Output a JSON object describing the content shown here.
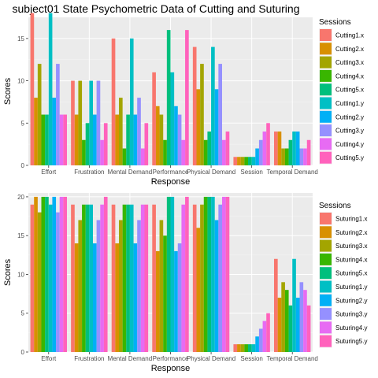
{
  "chart_data": [
    {
      "type": "bar",
      "title": "subject01 State Psychometric Data of Cutting and Suturing",
      "xlabel": "Response",
      "ylabel": "Scores",
      "ylim": [
        0,
        17.5
      ],
      "yticks": [
        0,
        5,
        10,
        15
      ],
      "categories": [
        "Effort",
        "Frustration",
        "Mental Demand",
        "Performance",
        "Physical Demand",
        "Session",
        "Temporal Demand"
      ],
      "legend_title": "Sessions",
      "legend_position": "right",
      "grid": true,
      "series": [
        {
          "name": "Cutting1.x",
          "color": "#F8766D",
          "values": [
            18,
            10,
            15,
            11,
            14,
            1,
            4
          ]
        },
        {
          "name": "Cutting2.x",
          "color": "#D89000",
          "values": [
            8,
            6,
            6,
            7,
            9,
            1,
            4
          ]
        },
        {
          "name": "Cutting3.x",
          "color": "#A3A500",
          "values": [
            12,
            10,
            8,
            6,
            12,
            1,
            2
          ]
        },
        {
          "name": "Cutting4.x",
          "color": "#39B600",
          "values": [
            6,
            3,
            2,
            3,
            3,
            1,
            2
          ]
        },
        {
          "name": "Cutting5.x",
          "color": "#00BF7D",
          "values": [
            6,
            5,
            6,
            16,
            4,
            1,
            3
          ]
        },
        {
          "name": "Cutting1.y",
          "color": "#00BFC4",
          "values": [
            18,
            10,
            15,
            11,
            14,
            1,
            4
          ]
        },
        {
          "name": "Cutting2.y",
          "color": "#00B0F6",
          "values": [
            8,
            6,
            6,
            7,
            9,
            2,
            4
          ]
        },
        {
          "name": "Cutting3.y",
          "color": "#9590FF",
          "values": [
            12,
            10,
            8,
            6,
            12,
            3,
            2
          ]
        },
        {
          "name": "Cutting4.y",
          "color": "#E76BF3",
          "values": [
            6,
            3,
            2,
            3,
            3,
            4,
            2
          ]
        },
        {
          "name": "Cutting5.y",
          "color": "#FF62BC",
          "values": [
            6,
            5,
            5,
            16,
            4,
            5,
            3
          ]
        }
      ]
    },
    {
      "type": "bar",
      "title": "",
      "xlabel": "Response",
      "ylabel": "Scores",
      "ylim": [
        0,
        20.5
      ],
      "yticks": [
        0,
        5,
        10,
        15,
        20
      ],
      "categories": [
        "Effort",
        "Frustration",
        "Mental Demand",
        "Performance",
        "Physical Demand",
        "Session",
        "Temporal Demand"
      ],
      "legend_title": "Sessions",
      "legend_position": "right",
      "grid": true,
      "series": [
        {
          "name": "Suturing1.x",
          "color": "#F8766D",
          "values": [
            19,
            19,
            19,
            19,
            19,
            1,
            12
          ]
        },
        {
          "name": "Suturing2.x",
          "color": "#D89000",
          "values": [
            20,
            14,
            14,
            13,
            16,
            1,
            7
          ]
        },
        {
          "name": "Suturing3.x",
          "color": "#A3A500",
          "values": [
            18,
            17,
            17,
            17,
            19,
            1,
            9
          ]
        },
        {
          "name": "Suturing4.x",
          "color": "#39B600",
          "values": [
            20,
            19,
            19,
            15,
            20,
            1,
            8
          ]
        },
        {
          "name": "Suturing5.x",
          "color": "#00BF7D",
          "values": [
            20,
            19,
            19,
            20,
            20,
            1,
            6
          ]
        },
        {
          "name": "Suturing1.y",
          "color": "#00BFC4",
          "values": [
            19,
            19,
            19,
            20,
            20,
            1,
            12
          ]
        },
        {
          "name": "Suturing2.y",
          "color": "#00B0F6",
          "values": [
            20,
            14,
            14,
            13,
            17,
            2,
            7
          ]
        },
        {
          "name": "Suturing3.y",
          "color": "#9590FF",
          "values": [
            18,
            17,
            17,
            14,
            19,
            3,
            9
          ]
        },
        {
          "name": "Suturing4.y",
          "color": "#E76BF3",
          "values": [
            20,
            19,
            19,
            19,
            20,
            4,
            8
          ]
        },
        {
          "name": "Suturing5.y",
          "color": "#FF62BC",
          "values": [
            20,
            20,
            19,
            20,
            20,
            5,
            6
          ]
        }
      ]
    }
  ]
}
